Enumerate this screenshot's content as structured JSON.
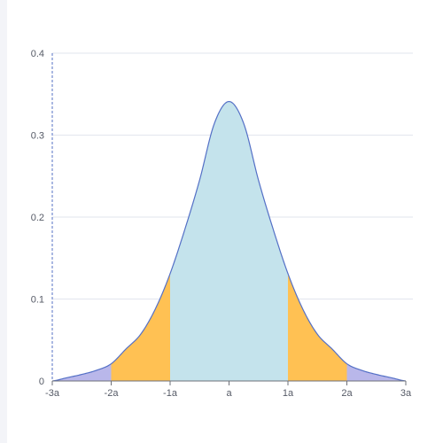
{
  "chart_data": {
    "type": "area",
    "title": "",
    "xlabel": "",
    "ylabel": "",
    "x_ticks": [
      "-3a",
      "-2a",
      "-1a",
      "a",
      "1a",
      "2a",
      "3a"
    ],
    "y_ticks": [
      "0",
      "0.1",
      "0.2",
      "0.3",
      "0.4"
    ],
    "xlim": [
      -3,
      3
    ],
    "ylim": [
      0,
      0.4
    ],
    "grid": true,
    "curve": {
      "x": [
        -3,
        -2.75,
        -2.5,
        -2.25,
        -2,
        -1.75,
        -1.5,
        -1.25,
        -1,
        -0.75,
        -0.5,
        -0.25,
        0,
        0.25,
        0.5,
        0.75,
        1,
        1.25,
        1.5,
        1.75,
        2,
        2.25,
        2.5,
        2.75,
        3
      ],
      "y": [
        0.0,
        0.004,
        0.008,
        0.013,
        0.021,
        0.039,
        0.057,
        0.088,
        0.131,
        0.185,
        0.245,
        0.314,
        0.341,
        0.314,
        0.245,
        0.185,
        0.131,
        0.088,
        0.057,
        0.039,
        0.021,
        0.013,
        0.008,
        0.004,
        0.0
      ]
    },
    "regions": [
      {
        "from": -3,
        "to": -2,
        "color": "#b9b7ea"
      },
      {
        "from": -2,
        "to": -1,
        "color": "#ffc153"
      },
      {
        "from": -1,
        "to": 1,
        "color": "#c4e3ec"
      },
      {
        "from": 1,
        "to": 2,
        "color": "#ffc153"
      },
      {
        "from": 2,
        "to": 3,
        "color": "#b9b7ea"
      }
    ],
    "line_color": "#5470c6",
    "grid_color": "#e2e5ee",
    "axis_color": "#5470c6"
  }
}
